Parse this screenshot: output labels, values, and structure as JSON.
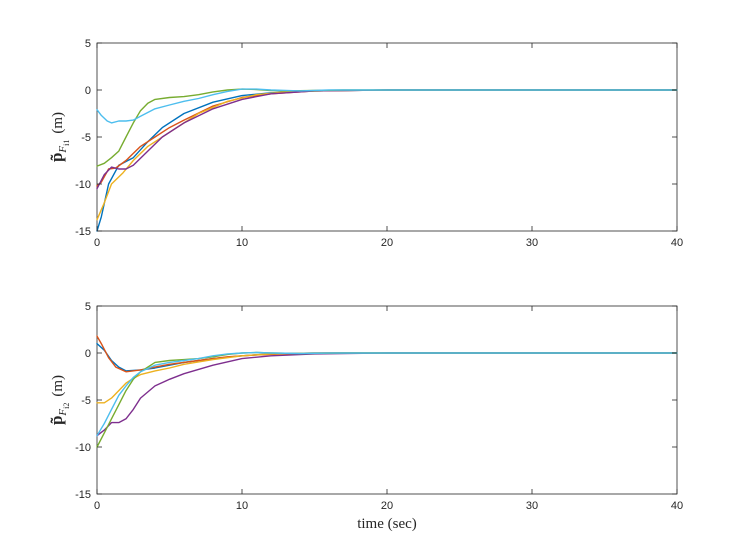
{
  "chart_data": [
    {
      "type": "line",
      "ylabel_main": "p̃",
      "ylabel_sub": "F",
      "ylabel_subsub": "i1",
      "ylabel_unit": "(m)",
      "xlabel": "",
      "xlim": [
        0,
        40
      ],
      "ylim": [
        -15,
        5
      ],
      "xticks": [
        "0",
        "10",
        "20",
        "30",
        "40"
      ],
      "yticks": [
        "5",
        "0",
        "-5",
        "-10",
        "-15"
      ],
      "series": [
        {
          "color": "#0072BD",
          "x": [
            0,
            0.3,
            0.8,
            1.5,
            2.5,
            3.5,
            4.5,
            6,
            8,
            10,
            12,
            15,
            20,
            40
          ],
          "y": [
            -15,
            -13.5,
            -10,
            -8,
            -7.2,
            -5.5,
            -4,
            -2.5,
            -1.3,
            -0.6,
            -0.3,
            -0.1,
            0,
            0
          ]
        },
        {
          "color": "#D95319",
          "x": [
            0,
            0.3,
            0.8,
            1.3,
            2,
            3,
            4,
            5,
            6,
            8,
            10,
            12,
            15,
            20,
            40
          ],
          "y": [
            -10.2,
            -9.8,
            -8.4,
            -8.3,
            -7.5,
            -6,
            -5,
            -4,
            -3.2,
            -1.7,
            -0.8,
            -0.4,
            -0.1,
            0,
            0
          ]
        },
        {
          "color": "#EDB120",
          "x": [
            0,
            0.5,
            1,
            1.8,
            2.5,
            3.5,
            5,
            7,
            9,
            11,
            13,
            16,
            20,
            40
          ],
          "y": [
            -13.8,
            -12,
            -10,
            -8.8,
            -7.5,
            -6,
            -4.5,
            -2.5,
            -1.2,
            -0.5,
            -0.2,
            -0.05,
            0,
            0
          ]
        },
        {
          "color": "#7E2F8E",
          "x": [
            0,
            0.5,
            1,
            1.5,
            2,
            2.5,
            3.5,
            4.5,
            6,
            8,
            10,
            12,
            15,
            20,
            40
          ],
          "y": [
            -10.5,
            -9,
            -8.2,
            -8.4,
            -8.4,
            -8,
            -6.5,
            -5,
            -3.5,
            -2,
            -1,
            -0.4,
            -0.1,
            0,
            0
          ]
        },
        {
          "color": "#77AC30",
          "x": [
            0,
            0.5,
            1,
            1.5,
            2,
            2.5,
            3,
            3.5,
            4,
            5,
            6,
            7,
            8,
            9,
            10,
            11,
            12,
            13,
            15,
            17,
            20,
            40
          ],
          "y": [
            -8.1,
            -7.8,
            -7.2,
            -6.5,
            -5,
            -3.5,
            -2.2,
            -1.4,
            -1,
            -0.8,
            -0.7,
            -0.5,
            -0.2,
            0,
            0.1,
            0.05,
            -0.05,
            -0.1,
            -0.05,
            0,
            0,
            0
          ]
        },
        {
          "color": "#4DBEEE",
          "x": [
            0,
            0.3,
            0.7,
            1,
            1.5,
            2,
            2.5,
            3,
            4,
            5,
            6,
            7,
            8,
            9,
            10,
            11,
            12,
            14,
            16,
            18,
            20,
            40
          ],
          "y": [
            -2.1,
            -2.7,
            -3.3,
            -3.5,
            -3.3,
            -3.3,
            -3.2,
            -2.8,
            -2,
            -1.6,
            -1.2,
            -0.9,
            -0.5,
            -0.15,
            0.1,
            0.1,
            0,
            -0.1,
            0,
            0,
            0,
            0
          ]
        }
      ]
    },
    {
      "type": "line",
      "ylabel_main": "p̃",
      "ylabel_sub": "F",
      "ylabel_subsub": "i2",
      "ylabel_unit": "(m)",
      "xlabel": "time (sec)",
      "xlim": [
        0,
        40
      ],
      "ylim": [
        -15,
        5
      ],
      "xticks": [
        "0",
        "10",
        "20",
        "30",
        "40"
      ],
      "yticks": [
        "5",
        "0",
        "-5",
        "-10",
        "-15"
      ],
      "series": [
        {
          "color": "#0072BD",
          "x": [
            0,
            0.5,
            1,
            1.5,
            2,
            3,
            4,
            5,
            6,
            8,
            10,
            12,
            15,
            20,
            40
          ],
          "y": [
            1,
            0.3,
            -0.8,
            -1.5,
            -1.9,
            -1.8,
            -1.6,
            -1.3,
            -1,
            -0.6,
            -0.3,
            -0.1,
            0,
            0,
            0
          ]
        },
        {
          "color": "#D95319",
          "x": [
            0,
            0.3,
            0.8,
            1.3,
            2,
            3,
            4,
            5,
            7,
            9,
            11,
            13,
            16,
            20,
            40
          ],
          "y": [
            1.8,
            1,
            -0.5,
            -1.5,
            -2,
            -1.8,
            -1.5,
            -1.2,
            -0.8,
            -0.4,
            -0.2,
            -0.1,
            0,
            0,
            0
          ]
        },
        {
          "color": "#EDB120",
          "x": [
            0,
            0.5,
            1,
            1.5,
            2,
            2.5,
            3,
            4,
            5,
            6,
            8,
            10,
            12,
            15,
            20,
            40
          ],
          "y": [
            -5.3,
            -5.3,
            -4.8,
            -4,
            -3.2,
            -2.7,
            -2.3,
            -1.9,
            -1.6,
            -1.2,
            -0.7,
            -0.3,
            -0.1,
            0,
            0,
            0
          ]
        },
        {
          "color": "#7E2F8E",
          "x": [
            0,
            0.5,
            1,
            1.5,
            2,
            2.5,
            3,
            4,
            5,
            6,
            8,
            10,
            12,
            15,
            20,
            40
          ],
          "y": [
            -8.8,
            -8.2,
            -7.4,
            -7.4,
            -7,
            -6,
            -4.8,
            -3.5,
            -2.8,
            -2.2,
            -1.3,
            -0.6,
            -0.3,
            -0.1,
            0,
            0
          ]
        },
        {
          "color": "#77AC30",
          "x": [
            0,
            0.5,
            1,
            1.5,
            2,
            2.5,
            3,
            3.5,
            4,
            5,
            6,
            7,
            8,
            9,
            10,
            11,
            12,
            14,
            17,
            20,
            40
          ],
          "y": [
            -10,
            -8.5,
            -7,
            -5.5,
            -4,
            -2.8,
            -2,
            -1.5,
            -1,
            -0.8,
            -0.7,
            -0.6,
            -0.4,
            -0.15,
            0,
            0.05,
            0,
            -0.05,
            0,
            0,
            0
          ]
        },
        {
          "color": "#4DBEEE",
          "x": [
            0,
            0.5,
            1,
            1.5,
            2,
            2.5,
            3,
            4,
            5,
            6,
            7,
            8,
            9,
            10,
            11,
            12,
            14,
            16,
            18,
            20,
            40
          ],
          "y": [
            -8.8,
            -7.5,
            -6,
            -4.5,
            -3.5,
            -2.6,
            -2,
            -1.3,
            -1,
            -0.8,
            -0.6,
            -0.3,
            -0.1,
            0,
            0.05,
            0,
            -0.05,
            0,
            0,
            0,
            0
          ]
        }
      ]
    }
  ]
}
